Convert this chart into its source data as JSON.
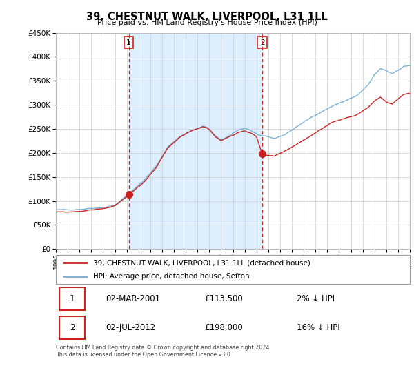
{
  "title": "39, CHESTNUT WALK, LIVERPOOL, L31 1LL",
  "subtitle": "Price paid vs. HM Land Registry's House Price Index (HPI)",
  "hpi_label": "HPI: Average price, detached house, Sefton",
  "property_label": "39, CHESTNUT WALK, LIVERPOOL, L31 1LL (detached house)",
  "transaction1": {
    "label": "1",
    "date": "02-MAR-2001",
    "price": 113500,
    "pct": "2%",
    "dir": "↓"
  },
  "transaction2": {
    "label": "2",
    "date": "02-JUL-2012",
    "price": 198000,
    "pct": "16%",
    "dir": "↓"
  },
  "footnote1": "Contains HM Land Registry data © Crown copyright and database right 2024.",
  "footnote2": "This data is licensed under the Open Government Licence v3.0.",
  "ylim": [
    0,
    450000
  ],
  "yticks": [
    0,
    50000,
    100000,
    150000,
    200000,
    250000,
    300000,
    350000,
    400000,
    450000
  ],
  "background_color": "#ffffff",
  "plot_bg_color": "#ffffff",
  "hpi_color": "#7ab0d4",
  "price_color": "#cc2222",
  "dashed_color": "#cc2222",
  "shade_color": "#ddeeff",
  "grid_color": "#cccccc",
  "t1_year": 2001.17,
  "t2_year": 2012.5,
  "t1_price": 113500,
  "t2_price": 198000
}
